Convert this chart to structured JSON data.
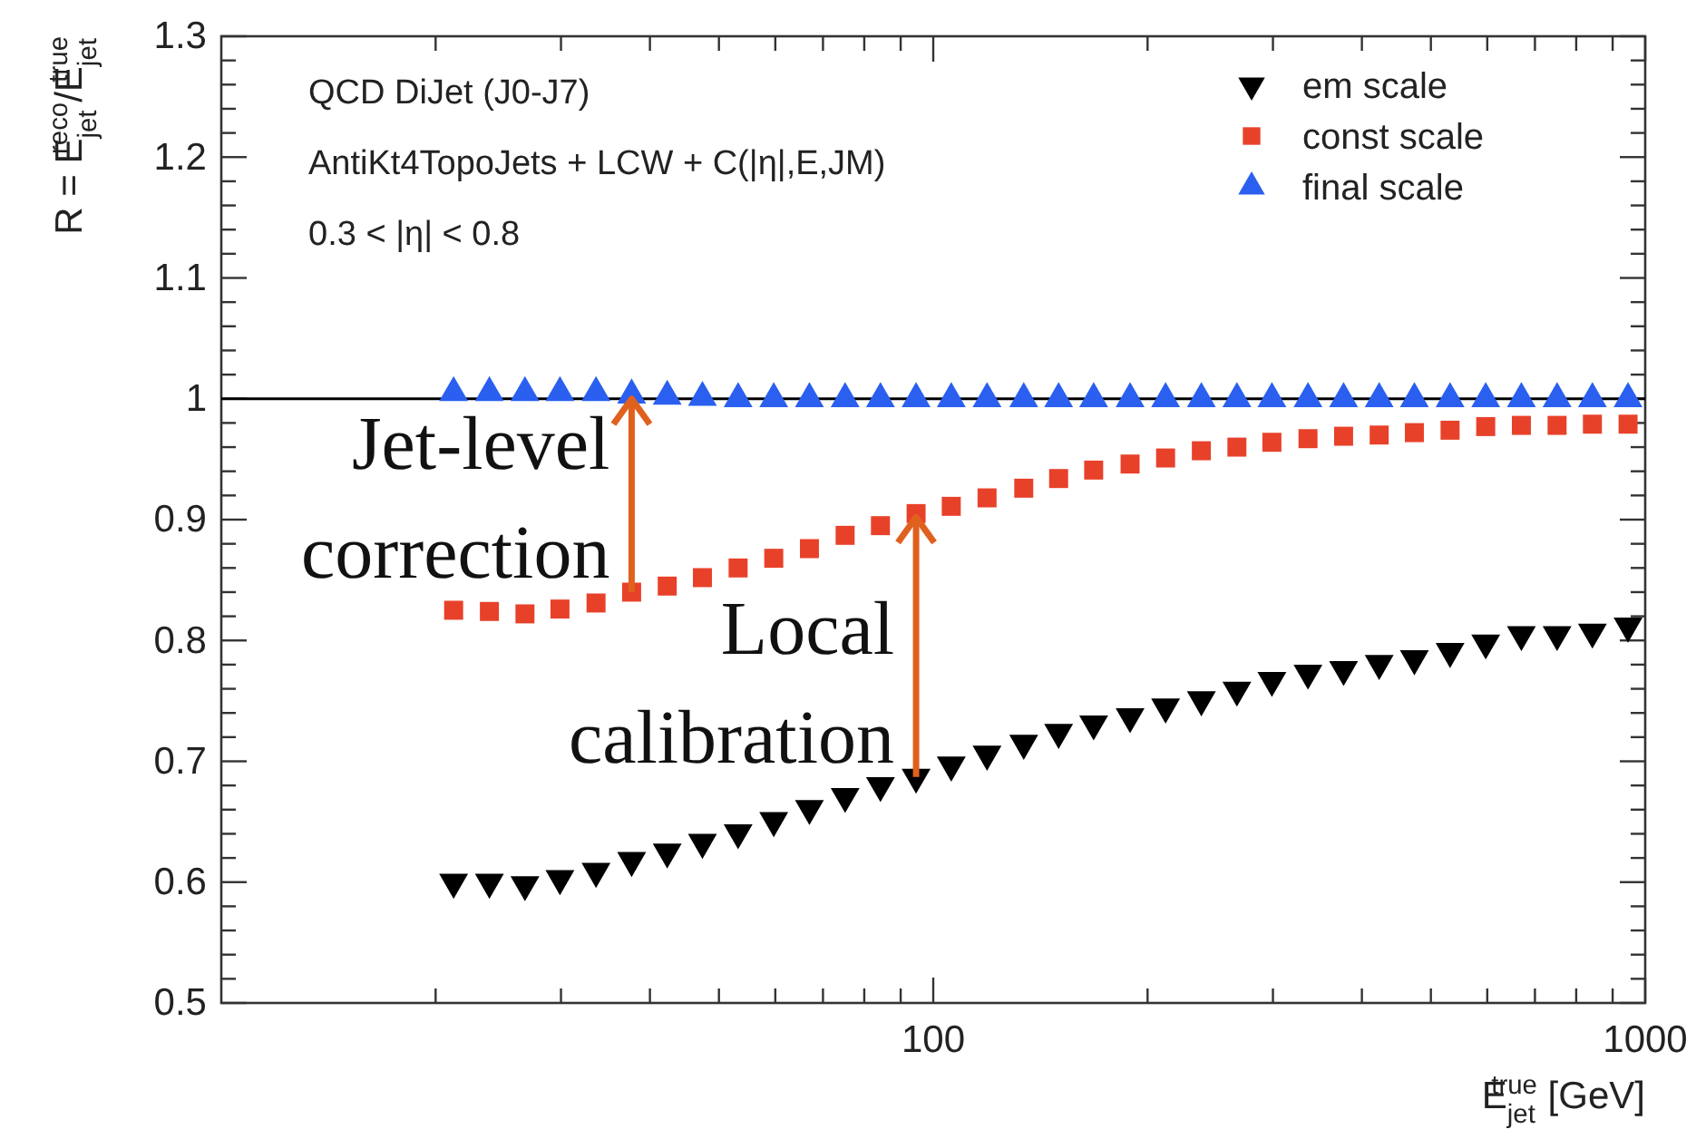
{
  "chart_data": {
    "type": "scatter",
    "xlabel": "E$_{jet}$$^{true}$ [GeV]",
    "ylabel": "R = E$_{jet}$$^{reco}$/E$_{jet}$$^{true}$",
    "log": "x",
    "legend": "top right",
    "x": [
      21.2,
      23.8,
      26.7,
      29.9,
      33.6,
      37.7,
      42.3,
      47.4,
      53.2,
      59.7,
      67.0,
      75.2,
      84.3,
      94.6,
      106,
      119,
      134,
      150,
      168,
      189,
      212,
      238,
      267,
      299,
      336,
      377,
      423,
      474,
      532,
      597,
      670,
      752,
      843,
      946
    ],
    "xlim": [
      10,
      1000
    ],
    "xticks": [
      {
        "value": 20,
        "label": null
      },
      {
        "value": 30,
        "label": null
      },
      {
        "value": 40,
        "label": null
      },
      {
        "value": 50,
        "label": null
      },
      {
        "value": 60,
        "label": null
      },
      {
        "value": 70,
        "label": null
      },
      {
        "value": 80,
        "label": null
      },
      {
        "value": 90,
        "label": null
      },
      100,
      {
        "value": 200,
        "label": null
      },
      {
        "value": 300,
        "label": null
      },
      {
        "value": 400,
        "label": null
      },
      {
        "value": 500,
        "label": null
      },
      {
        "value": 600,
        "label": null
      },
      {
        "value": 700,
        "label": null
      },
      {
        "value": 800,
        "label": null
      },
      {
        "value": 900,
        "label": null
      },
      1000
    ],
    "ylim": [
      0.5,
      1.3
    ],
    "yticks": [
      0.5,
      {
        "value": 0.52,
        "label": null
      },
      {
        "value": 0.54,
        "label": null
      },
      {
        "value": 0.56,
        "label": null
      },
      {
        "value": 0.58,
        "label": null
      },
      0.6,
      {
        "value": 0.62,
        "label": null
      },
      {
        "value": 0.64,
        "label": null
      },
      {
        "value": 0.66,
        "label": null
      },
      {
        "value": 0.68,
        "label": null
      },
      0.7,
      {
        "value": 0.72,
        "label": null
      },
      {
        "value": 0.74,
        "label": null
      },
      {
        "value": 0.76,
        "label": null
      },
      {
        "value": 0.78,
        "label": null
      },
      0.8,
      {
        "value": 0.82,
        "label": null
      },
      {
        "value": 0.84,
        "label": null
      },
      {
        "value": 0.86,
        "label": null
      },
      {
        "value": 0.88,
        "label": null
      },
      0.9,
      {
        "value": 0.92,
        "label": null
      },
      {
        "value": 0.94,
        "label": null
      },
      {
        "value": 0.96,
        "label": null
      },
      {
        "value": 0.98,
        "label": null
      },
      1,
      {
        "value": 1.02,
        "label": null
      },
      {
        "value": 1.04,
        "label": null
      },
      {
        "value": 1.06,
        "label": null
      },
      {
        "value": 1.08,
        "label": null
      },
      1.1,
      {
        "value": 1.12,
        "label": null
      },
      {
        "value": 1.14,
        "label": null
      },
      {
        "value": 1.16,
        "label": null
      },
      {
        "value": 1.18,
        "label": null
      },
      1.2,
      {
        "value": 1.22,
        "label": null
      },
      {
        "value": 1.24,
        "label": null
      },
      {
        "value": 1.26,
        "label": null
      },
      {
        "value": 1.28,
        "label": null
      },
      1.3
    ],
    "series": [
      {
        "name": "em scale",
        "color": "#000000",
        "values": [
          0.6,
          0.6,
          0.598,
          0.603,
          0.609,
          0.618,
          0.625,
          0.633,
          0.641,
          0.651,
          0.661,
          0.671,
          0.68,
          0.687,
          0.697,
          0.706,
          0.715,
          0.724,
          0.731,
          0.737,
          0.745,
          0.751,
          0.759,
          0.767,
          0.773,
          0.776,
          0.781,
          0.785,
          0.791,
          0.798,
          0.805,
          0.805,
          0.807,
          0.812
        ]
      },
      {
        "name": "const scale",
        "color": "#e8412a",
        "marker": "square",
        "values": [
          0.825,
          0.824,
          0.822,
          0.826,
          0.831,
          0.84,
          0.845,
          0.852,
          0.86,
          0.868,
          0.876,
          0.887,
          0.895,
          0.905,
          0.911,
          0.918,
          0.926,
          0.934,
          0.941,
          0.946,
          0.951,
          0.957,
          0.96,
          0.964,
          0.967,
          0.969,
          0.97,
          0.972,
          0.974,
          0.977,
          0.978,
          0.978,
          0.979,
          0.979
        ]
      },
      {
        "name": "final scale",
        "color": "#2a5ff0",
        "marker": "triangle",
        "values": [
          1.005,
          1.005,
          1.005,
          1.005,
          1.005,
          1.003,
          1.002,
          1.001,
          1.0,
          1.0,
          1.0,
          1.0,
          1.0,
          1.0,
          1.0,
          1.0,
          1.0,
          1.0,
          1.0,
          1.0,
          1.0,
          1.0,
          1.0,
          1.0,
          1.0,
          1.0,
          1.0,
          1.0,
          1.0,
          1.0,
          1.0,
          1.0,
          1.0,
          1.0
        ]
      }
    ],
    "ref_lines": [
      {
        "axis": "y",
        "value": 1,
        "label": null,
        "color": "#000000"
      }
    ],
    "annotations": [
      "QCD DiJet (J0-J7)",
      "AntiKt4TopoJets + LCW + C(|η|,E,JM)",
      "0.3 < |η| < 0.8",
      {
        "text": "Jet-level correction",
        "x": 37.7,
        "y": 0.84
      },
      {
        "text": "Local calibration",
        "x": 94.6,
        "y": 0.687
      }
    ]
  }
}
